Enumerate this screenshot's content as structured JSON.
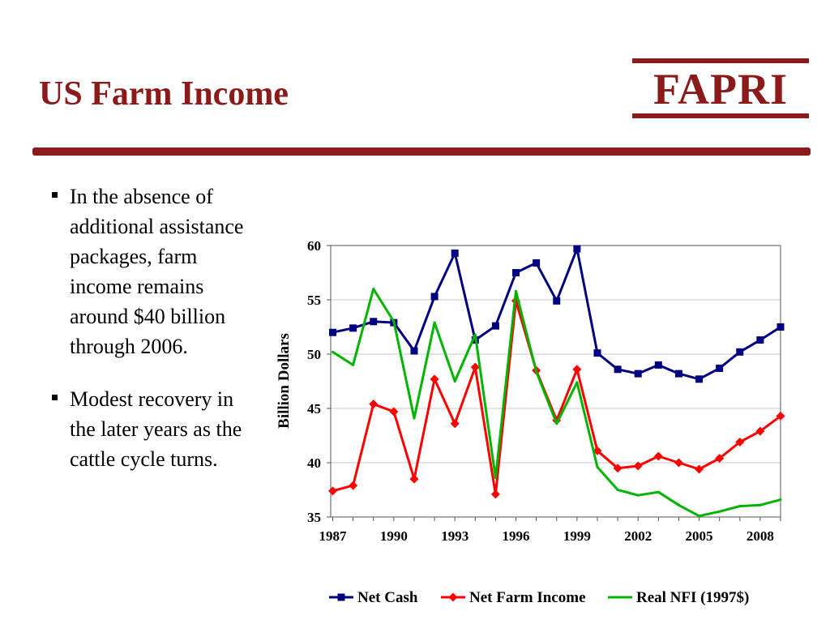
{
  "slide": {
    "title": "US Farm Income",
    "logo_text": "FAPRI",
    "accent_color": "#8b1a1a"
  },
  "bullets": [
    "In the absence of additional assistance packages, farm income remains around $40 billion through 2006.",
    "Modest recovery in the later years as the cattle cycle turns."
  ],
  "chart_data": {
    "type": "line",
    "ylabel": "Billion Dollars",
    "xlabel": "",
    "ylim": [
      35,
      60
    ],
    "yticks": [
      35,
      40,
      45,
      50,
      55,
      60
    ],
    "x": [
      1987,
      1988,
      1989,
      1990,
      1991,
      1992,
      1993,
      1994,
      1995,
      1996,
      1997,
      1998,
      1999,
      2000,
      2001,
      2002,
      2003,
      2004,
      2005,
      2006,
      2007,
      2008,
      2009
    ],
    "xtick_labels": [
      "1987",
      "1990",
      "1993",
      "1996",
      "1999",
      "2002",
      "2005",
      "2008"
    ],
    "grid": "horizontal",
    "legend_position": "bottom",
    "series": [
      {
        "name": "Net Cash",
        "color": "#000080",
        "marker": "square",
        "values": [
          52.0,
          52.4,
          53.0,
          52.9,
          50.3,
          55.3,
          59.3,
          51.3,
          52.6,
          57.5,
          58.4,
          54.9,
          59.7,
          50.1,
          48.6,
          48.2,
          49.0,
          48.2,
          47.7,
          48.7,
          50.2,
          51.3,
          52.5
        ]
      },
      {
        "name": "Net Farm Income",
        "color": "#ff0000",
        "marker": "diamond",
        "values": [
          37.4,
          37.9,
          45.4,
          44.7,
          38.5,
          47.7,
          43.6,
          48.8,
          37.1,
          54.9,
          48.5,
          43.9,
          48.6,
          41.1,
          39.5,
          39.7,
          40.6,
          40.0,
          39.4,
          40.4,
          41.9,
          42.9,
          44.3
        ]
      },
      {
        "name": "Real NFI (1997$)",
        "color": "#00b400",
        "marker": "none",
        "values": [
          50.2,
          49.0,
          56.0,
          53.0,
          44.1,
          52.9,
          47.5,
          51.8,
          38.6,
          55.8,
          48.4,
          43.6,
          47.4,
          39.6,
          37.5,
          37.0,
          37.3,
          36.1,
          35.1,
          35.5,
          36.0,
          36.1,
          36.6
        ]
      }
    ]
  }
}
